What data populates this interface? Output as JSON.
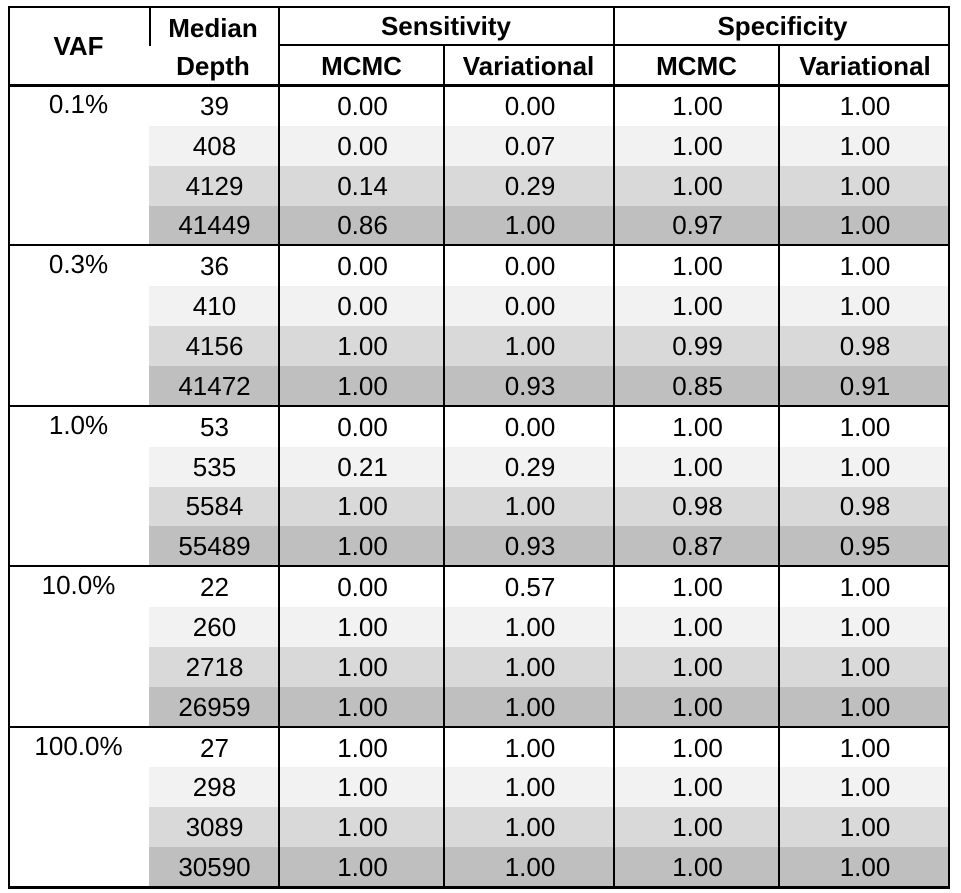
{
  "table": {
    "headers": {
      "vaf": "VAF",
      "depth_line1": "Median",
      "depth_line2": "Depth",
      "sensitivity": "Sensitivity",
      "specificity": "Specificity",
      "sens_mcmc": "MCMC",
      "sens_var": "Variational",
      "spec_mcmc": "MCMC",
      "spec_var": "Variational"
    },
    "row_shades": [
      "#ffffff",
      "#f2f2f2",
      "#d9d9d9",
      "#bfbfbf"
    ],
    "groups": [
      {
        "vaf": "0.1%",
        "rows": [
          [
            "39",
            "0.00",
            "0.00",
            "1.00",
            "1.00"
          ],
          [
            "408",
            "0.00",
            "0.07",
            "1.00",
            "1.00"
          ],
          [
            "4129",
            "0.14",
            "0.29",
            "1.00",
            "1.00"
          ],
          [
            "41449",
            "0.86",
            "1.00",
            "0.97",
            "1.00"
          ]
        ]
      },
      {
        "vaf": "0.3%",
        "rows": [
          [
            "36",
            "0.00",
            "0.00",
            "1.00",
            "1.00"
          ],
          [
            "410",
            "0.00",
            "0.00",
            "1.00",
            "1.00"
          ],
          [
            "4156",
            "1.00",
            "1.00",
            "0.99",
            "0.98"
          ],
          [
            "41472",
            "1.00",
            "0.93",
            "0.85",
            "0.91"
          ]
        ]
      },
      {
        "vaf": "1.0%",
        "rows": [
          [
            "53",
            "0.00",
            "0.00",
            "1.00",
            "1.00"
          ],
          [
            "535",
            "0.21",
            "0.29",
            "1.00",
            "1.00"
          ],
          [
            "5584",
            "1.00",
            "1.00",
            "0.98",
            "0.98"
          ],
          [
            "55489",
            "1.00",
            "0.93",
            "0.87",
            "0.95"
          ]
        ]
      },
      {
        "vaf": "10.0%",
        "rows": [
          [
            "22",
            "0.00",
            "0.57",
            "1.00",
            "1.00"
          ],
          [
            "260",
            "1.00",
            "1.00",
            "1.00",
            "1.00"
          ],
          [
            "2718",
            "1.00",
            "1.00",
            "1.00",
            "1.00"
          ],
          [
            "26959",
            "1.00",
            "1.00",
            "1.00",
            "1.00"
          ]
        ]
      },
      {
        "vaf": "100.0%",
        "rows": [
          [
            "27",
            "1.00",
            "1.00",
            "1.00",
            "1.00"
          ],
          [
            "298",
            "1.00",
            "1.00",
            "1.00",
            "1.00"
          ],
          [
            "3089",
            "1.00",
            "1.00",
            "1.00",
            "1.00"
          ],
          [
            "30590",
            "1.00",
            "1.00",
            "1.00",
            "1.00"
          ]
        ]
      }
    ]
  }
}
